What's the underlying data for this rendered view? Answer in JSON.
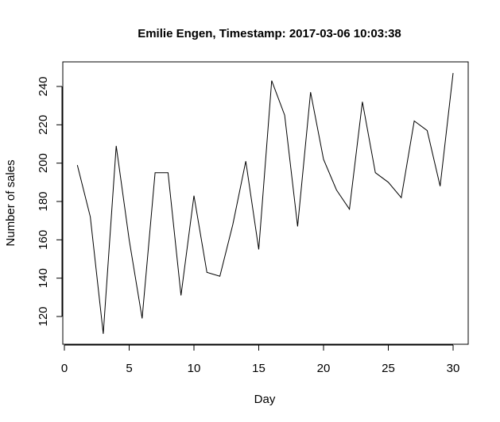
{
  "chart_data": {
    "type": "line",
    "title": "Emilie Engen, Timestamp: 2017-03-06 10:03:38",
    "xlabel": "Day",
    "ylabel": "Number of sales",
    "xlim": [
      0,
      30
    ],
    "ylim": [
      120,
      240
    ],
    "x_ticks": [
      "0",
      "5",
      "10",
      "15",
      "20",
      "25",
      "30"
    ],
    "y_ticks": [
      "120",
      "140",
      "160",
      "180",
      "200",
      "220",
      "240"
    ],
    "grid": false,
    "legend": "none",
    "series": [
      {
        "x": [
          1,
          2,
          3,
          4,
          5,
          6,
          7,
          8,
          9,
          10,
          11,
          12,
          13,
          14,
          15,
          16,
          17,
          18,
          19,
          20,
          21,
          22,
          23,
          24,
          25,
          26,
          27,
          28,
          29,
          30
        ],
        "values": [
          199,
          172,
          111,
          209,
          160,
          119,
          195,
          195,
          131,
          183,
          143,
          141,
          168,
          201,
          155,
          243,
          225,
          167,
          237,
          202,
          186,
          176,
          232,
          195,
          190,
          182,
          222,
          217,
          188,
          247
        ]
      }
    ]
  }
}
